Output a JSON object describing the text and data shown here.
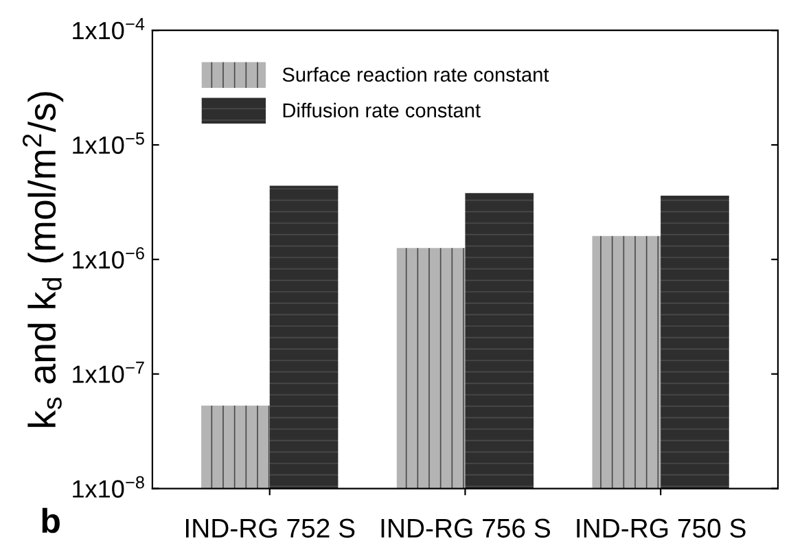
{
  "chart_data": {
    "type": "bar",
    "ylabel": "k$_{s}$ and k$_{d}$ (mol/m$^{2}$/s)",
    "annotations": [
      "b"
    ],
    "categories": [
      "IND-RG 752 S",
      "IND-RG 756 S",
      "IND-RG 750 S"
    ],
    "series": [
      {
        "name": "Surface reaction rate constant",
        "color": "#b4b4b4",
        "values": [
          5.3e-08,
          1.26e-06,
          1.6e-06
        ]
      },
      {
        "name": "Diffusion rate constant",
        "color": "#2e2e2e",
        "values": [
          4.4e-06,
          3.8e-06,
          3.6e-06
        ]
      }
    ],
    "log": true,
    "ylim": [
      1e-08,
      0.0001
    ],
    "yticks": [
      {
        "value": 1e-08,
        "label": "1x10$^{−8}$"
      },
      {
        "value": 1e-07,
        "label": "1x10$^{−7}$"
      },
      {
        "value": 1e-06,
        "label": "1x10$^{−6}$"
      },
      {
        "value": 1e-05,
        "label": "1x10$^{−5}$"
      },
      {
        "value": 0.0001,
        "label": "1x10$^{−4}$"
      }
    ],
    "grid": false,
    "legend": "top left"
  }
}
